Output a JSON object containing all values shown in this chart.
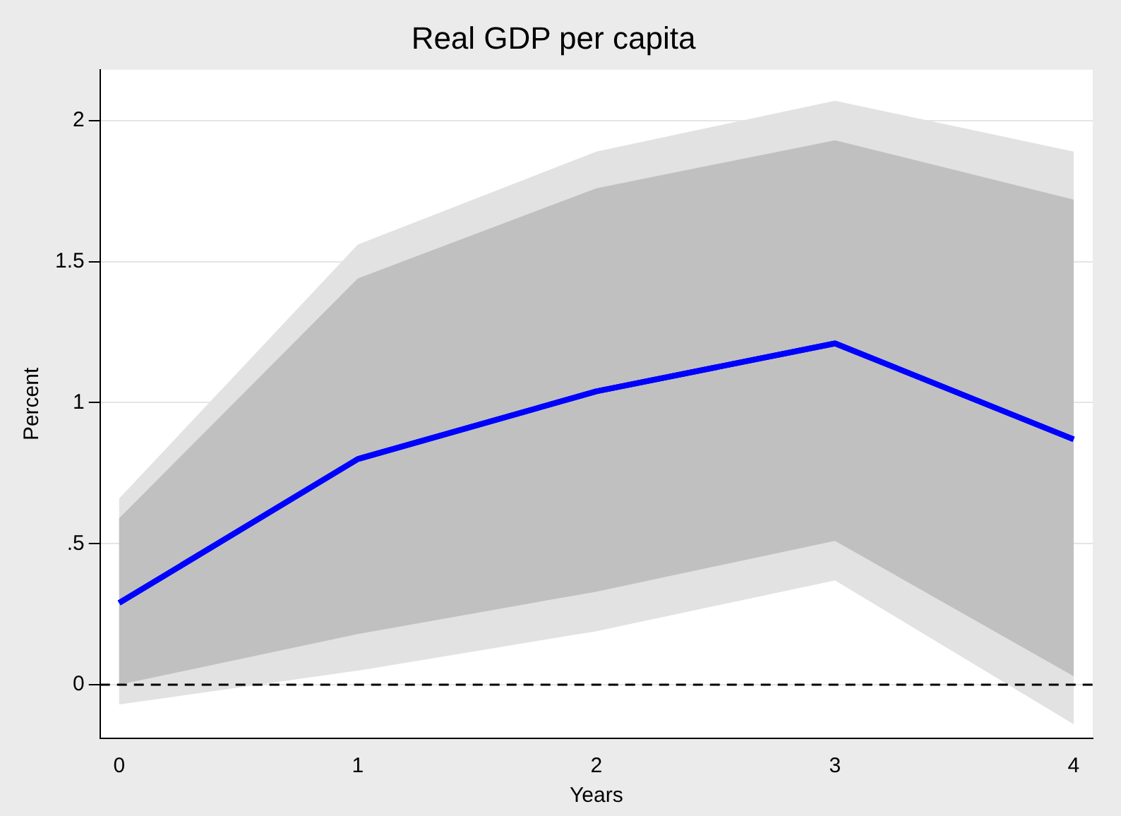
{
  "chart_data": {
    "type": "line",
    "title": "Real GDP per capita",
    "xlabel": "Years",
    "ylabel": "Percent",
    "x": [
      0,
      1,
      2,
      3,
      4
    ],
    "series": [
      {
        "type": "line",
        "color": "#0000ff",
        "values": [
          0.29,
          0.8,
          1.04,
          1.21,
          0.87
        ],
        "lower": [
          -0.07,
          0.05,
          0.19,
          0.37,
          -0.14
        ],
        "upper": [
          0.66,
          1.56,
          1.89,
          2.07,
          1.89
        ]
      },
      {
        "type": "line",
        "color": "#0000ff",
        "values": [
          0.29,
          0.8,
          1.04,
          1.21,
          0.87
        ],
        "lower": [
          0.0,
          0.18,
          0.33,
          0.51,
          0.03
        ],
        "upper": [
          0.59,
          1.44,
          1.76,
          1.93,
          1.72
        ]
      }
    ],
    "xlim": [
      -0.08,
      4.08
    ],
    "xticks": [
      0,
      1,
      2,
      3,
      4
    ],
    "ylim": [
      -0.19,
      2.18
    ],
    "yticks": [
      0,
      {
        "value": 0.5,
        "label": ".5"
      },
      1,
      1.5,
      2
    ],
    "grid": "y",
    "legend": false,
    "marker": "none",
    "ref_lines": [
      {
        "axis": "y",
        "value": 0,
        "color": "#000000",
        "line_style": "dashed"
      }
    ]
  }
}
